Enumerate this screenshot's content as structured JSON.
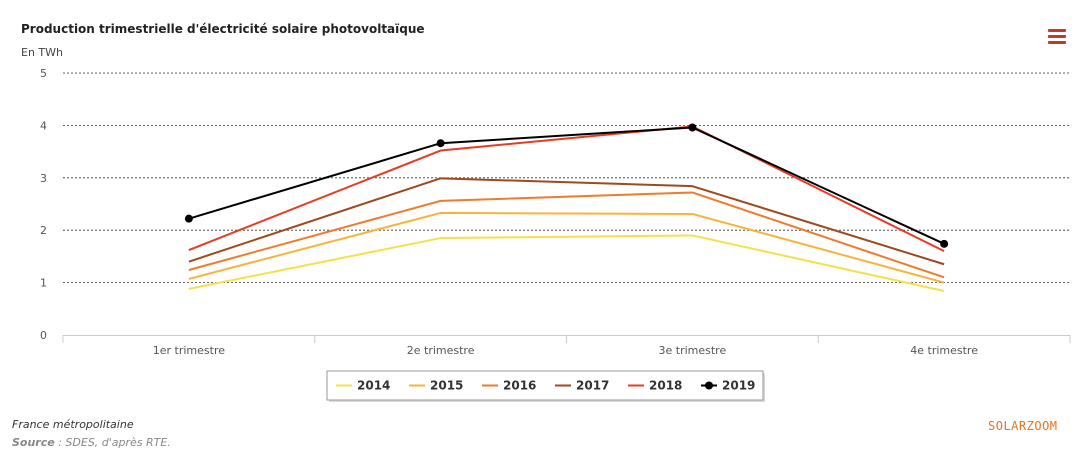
{
  "chart_data": {
    "type": "line",
    "title": "Production trimestrielle d'électricité solaire photovoltaïque",
    "ylabel": "En TWh",
    "categories": [
      "1er trimestre",
      "2e trimestre",
      "3e trimestre",
      "4e trimestre"
    ],
    "yticks": [
      0,
      1,
      2,
      3,
      4,
      5
    ],
    "ylim": [
      0,
      5
    ],
    "grid": true,
    "legend_position": "bottom-center",
    "series": [
      {
        "name": "2014",
        "color": "#f5e04a",
        "values": [
          0.88,
          1.85,
          1.9,
          0.84
        ]
      },
      {
        "name": "2015",
        "color": "#f7b43a",
        "values": [
          1.07,
          2.33,
          2.31,
          1.0
        ]
      },
      {
        "name": "2016",
        "color": "#ef7b2d",
        "values": [
          1.24,
          2.56,
          2.72,
          1.1
        ]
      },
      {
        "name": "2017",
        "color": "#9c4a1e",
        "values": [
          1.4,
          2.99,
          2.84,
          1.35
        ]
      },
      {
        "name": "2018",
        "color": "#e53d23",
        "values": [
          1.62,
          3.52,
          3.98,
          1.6
        ]
      },
      {
        "name": "2019",
        "color": "#000000",
        "values": [
          2.22,
          3.66,
          3.96,
          1.74
        ],
        "markers": true
      }
    ]
  },
  "menu": {
    "icon": "hamburger-menu-icon"
  },
  "footer": {
    "note": "France métropolitaine",
    "source_label": "Source",
    "source_text": " : SDES, d'après RTE."
  },
  "brand": {
    "text": "SOLARZOOM",
    "color": "#e8731c"
  }
}
